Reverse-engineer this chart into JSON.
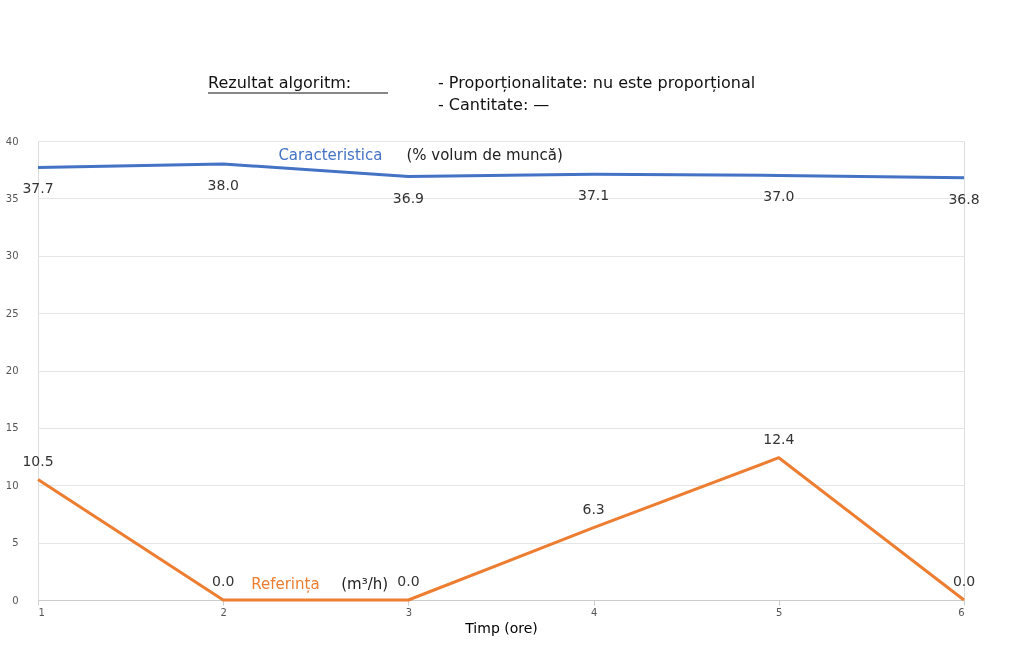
{
  "chart_data": {
    "type": "line",
    "title": "Rezultat algoritm:",
    "annotations": [
      "- Proporționalitate: nu este proporțional",
      "- Cantitate: —",
      "(% volum de muncă)",
      "(m³/h)"
    ],
    "xlabel": "Timp (ore)",
    "x": [
      1,
      2,
      3,
      4,
      5,
      6
    ],
    "series": [
      {
        "name": "Caracteristica",
        "color": "#4472c4",
        "values": [
          37.7,
          38.0,
          36.9,
          37.1,
          37.0,
          36.8
        ],
        "value_labels": [
          "37.7",
          "38.0",
          "36.9",
          "37.1",
          "37.0",
          "36.8"
        ]
      },
      {
        "name": "Referința",
        "color": "#ed7d31",
        "values": [
          10.5,
          0.0,
          0.0,
          6.3,
          12.4,
          0.0
        ],
        "value_labels": [
          "10.5",
          "0.0",
          "0.0",
          "6.3",
          "12.4",
          "0.0"
        ]
      }
    ],
    "xlim": [
      1,
      6
    ],
    "xticks": [
      1,
      2,
      3,
      4,
      5,
      6
    ],
    "ylim": [
      0,
      40
    ],
    "yticks": [
      0,
      5,
      10,
      15,
      20,
      25,
      30,
      35,
      40
    ],
    "grid": "y",
    "marker": "none",
    "line_style": "solid"
  }
}
